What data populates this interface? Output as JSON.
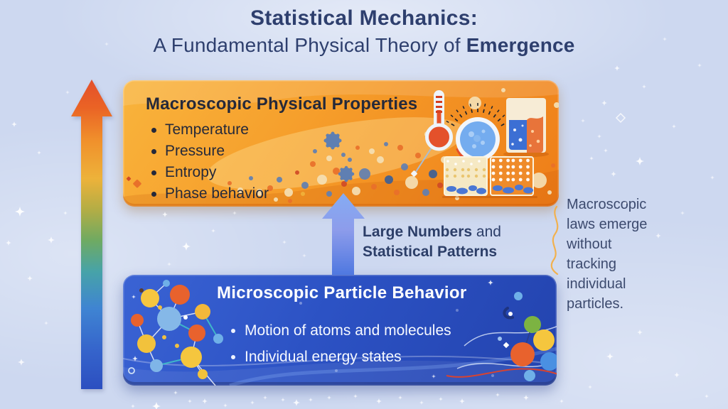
{
  "title": {
    "line1": "Statistical Mechanics:",
    "line2_regular": "A Fundamental Physical Theory of",
    "line2_bold": "Emergence"
  },
  "macro_panel": {
    "heading": "Macroscopic Physical Properties",
    "bullets": [
      "Temperature",
      "Pressure",
      "Entropy",
      "Phase behavior"
    ],
    "icons": [
      {
        "name": "thermometer-icon",
        "meaning": "temperature"
      },
      {
        "name": "pressure-gauge-icon",
        "meaning": "pressure / counting states"
      },
      {
        "name": "mixing-beaker-icon",
        "meaning": "entropy and mixing"
      },
      {
        "name": "phase-comparison-icons",
        "meaning": "phase behavior"
      }
    ]
  },
  "bridge": {
    "label_bold_1": "Large Numbers",
    "label_regular": "and",
    "label_bold_2": "Statistical Patterns",
    "arrow_icon": "up-arrow-icon"
  },
  "micro_panel": {
    "heading": "Microscopic Particle Behavior",
    "bullets": [
      "Motion of atoms and molecules",
      "Individual energy states"
    ],
    "icons": [
      {
        "name": "molecule-network-left-icon",
        "meaning": "connected particles"
      },
      {
        "name": "molecule-network-right-icon",
        "meaning": "connected particles"
      }
    ]
  },
  "side_note": "Macroscopic laws emerge without tracking individual particles.",
  "emergence_arrow_icon": "gradient-up-arrow-icon",
  "sparkle_icon": "sparkle-icon",
  "colors": {
    "background": "#cdd8f0",
    "title_text": "#2e3f6e",
    "macro_top": "#f9b43c",
    "macro_bottom": "#ee7d18",
    "macro_text": "#25293a",
    "micro_blue": "#2c52c4",
    "micro_text": "#ffffff",
    "bridge_text": "#2c3e68",
    "bridge_arrow_light": "#85acf3",
    "bridge_arrow_dark": "#4f78e0",
    "note_text": "#3c4a6e",
    "arrow_top": "#e44f2b",
    "arrow_bottom": "#2c4fc0",
    "squiggle": "#f2b14e",
    "sparkle": "#ffffff"
  }
}
